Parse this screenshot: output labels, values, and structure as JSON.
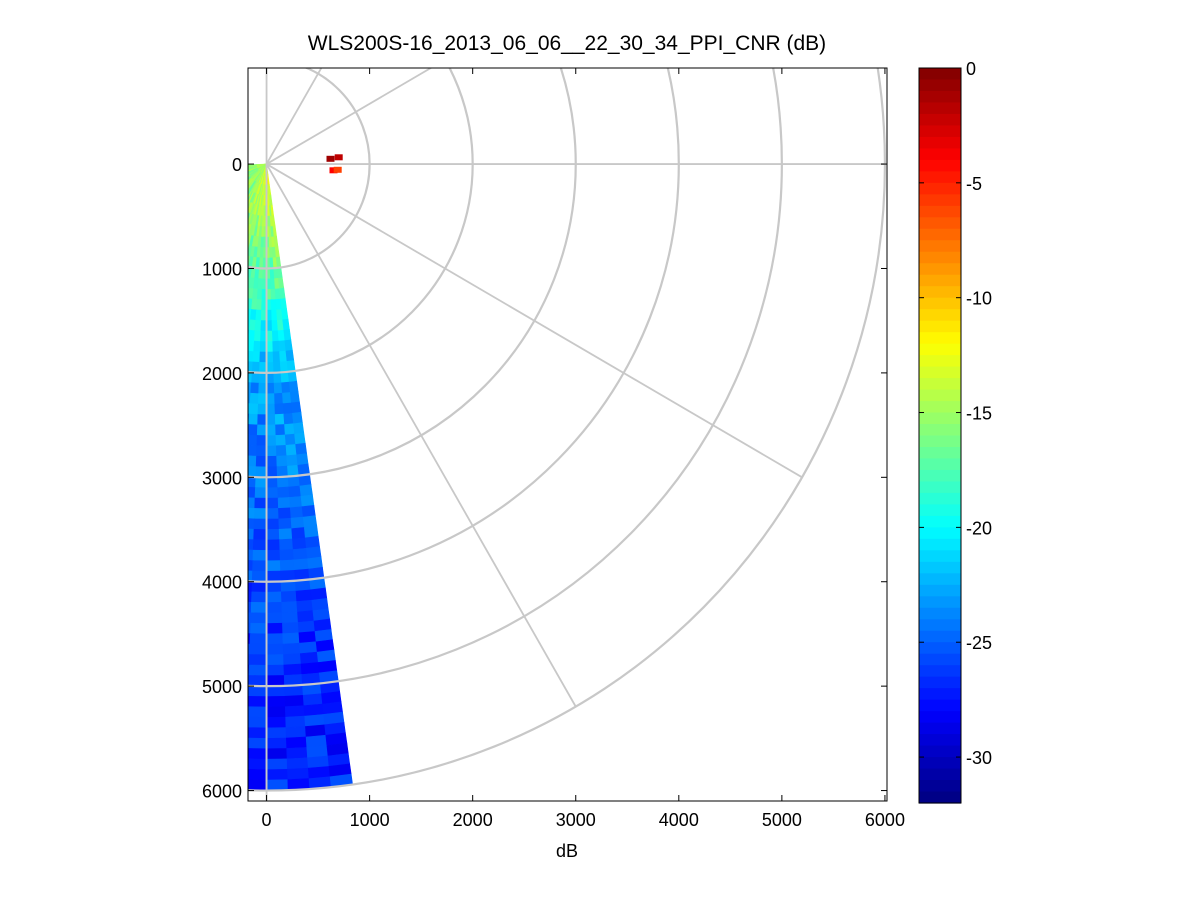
{
  "chart_data": {
    "type": "heatmap",
    "title": "WLS200S-16_2013_06_06__22_30_34_PPI_CNR (dB)",
    "xlabel": "dB",
    "ylabel": "",
    "xlim": [
      -180,
      6020
    ],
    "ylim": [
      -920,
      6100
    ],
    "y_axis_inverted": true,
    "x_ticks": [
      0,
      1000,
      2000,
      3000,
      4000,
      5000,
      6000
    ],
    "y_ticks": [
      0,
      1000,
      2000,
      3000,
      4000,
      5000,
      6000
    ],
    "grid": false,
    "polar_grid": {
      "range_rings": [
        1000,
        2000,
        3000,
        4000,
        5000,
        6000
      ],
      "bearing_lines_deg": [
        0,
        30,
        60,
        90,
        120,
        150
      ],
      "color": "#c8c8c8"
    },
    "sector": {
      "min_range": 0,
      "max_range": 6000,
      "angle_from_deg": -88,
      "angle_to_deg": 8,
      "angle_reference": "degrees clockwise from the positive y (downward) axis toward the positive x axis"
    },
    "field_summary": {
      "near_range_value_db": -15,
      "mid_range_value_db": -23,
      "far_range_value_db": -27,
      "hot_spots": [
        {
          "x": 620,
          "y": -50,
          "value": -1
        },
        {
          "x": 700,
          "y": -65,
          "value": -2
        },
        {
          "x": 650,
          "y": 60,
          "value": -4
        },
        {
          "x": 690,
          "y": 55,
          "value": -6
        }
      ]
    },
    "colorbar": {
      "min": -32,
      "max": 0,
      "ticks": [
        0,
        -5,
        -10,
        -15,
        -20,
        -25,
        -30
      ],
      "colormap": "jet",
      "placement": "right"
    }
  }
}
